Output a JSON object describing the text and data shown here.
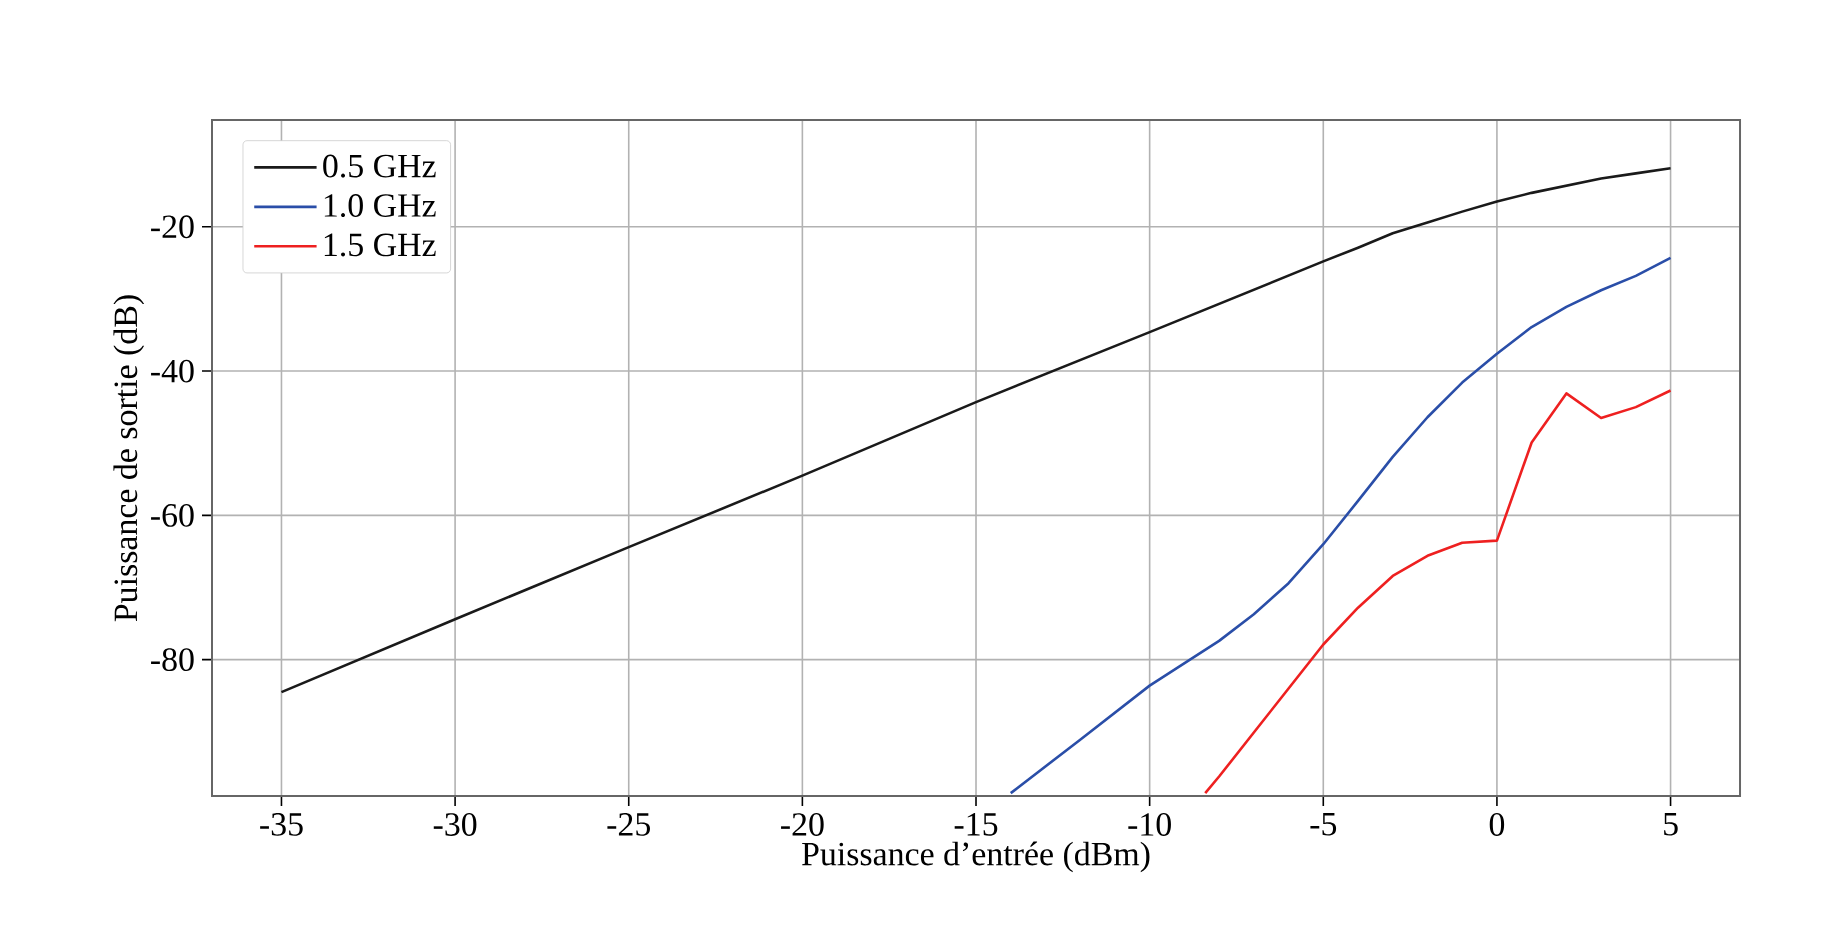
{
  "chart_data": {
    "type": "line",
    "xlabel": "Puissance d’entrée (dBm)",
    "ylabel": "Puissance de sortie (dB)",
    "xlim": [
      -37,
      7
    ],
    "ylim": [
      -98.9,
      -5.2
    ],
    "xticks": [
      -35,
      -30,
      -25,
      -20,
      -15,
      -10,
      -5,
      0,
      5
    ],
    "yticks": [
      -80,
      -60,
      -40,
      -20
    ],
    "grid": true,
    "legend": "top left",
    "line_style": "solid",
    "marker": "none",
    "series": [
      {
        "name": "0.5 GHz",
        "color": "#1a1a1a",
        "x": [
          -35,
          -30,
          -25,
          -20,
          -15,
          -10,
          -5,
          -4,
          -3,
          -2,
          -1,
          0,
          1,
          2,
          3,
          4,
          5
        ],
        "values": [
          -84.5,
          -74.4,
          -64.4,
          -54.5,
          -44.3,
          -34.6,
          -24.8,
          -22.9,
          -20.9,
          -19.4,
          -17.9,
          -16.5,
          -15.3,
          -14.3,
          -13.3,
          -12.6,
          -11.9
        ]
      },
      {
        "name": "1.0 GHz",
        "color": "#2a4ea8",
        "x": [
          -14,
          -12,
          -10,
          -8,
          -7,
          -6,
          -5,
          -4,
          -3,
          -2,
          -1,
          0,
          1,
          2,
          3,
          4,
          5
        ],
        "values": [
          -98.5,
          -91.1,
          -83.6,
          -77.4,
          -73.7,
          -69.4,
          -64.0,
          -58.0,
          -51.9,
          -46.4,
          -41.6,
          -37.6,
          -33.9,
          -31.1,
          -28.8,
          -26.8,
          -24.3
        ]
      },
      {
        "name": "1.5 GHz",
        "color": "#ee2020",
        "x": [
          -8.4,
          -8,
          -7,
          -6,
          -5,
          -4,
          -3,
          -2,
          -1,
          0,
          1,
          2,
          3,
          4,
          5
        ],
        "values": [
          -98.5,
          -96.2,
          -90.1,
          -84.0,
          -77.9,
          -72.8,
          -68.4,
          -65.6,
          -63.8,
          -63.5,
          -49.9,
          -43.1,
          -46.5,
          -45.0,
          -42.7
        ]
      }
    ]
  }
}
